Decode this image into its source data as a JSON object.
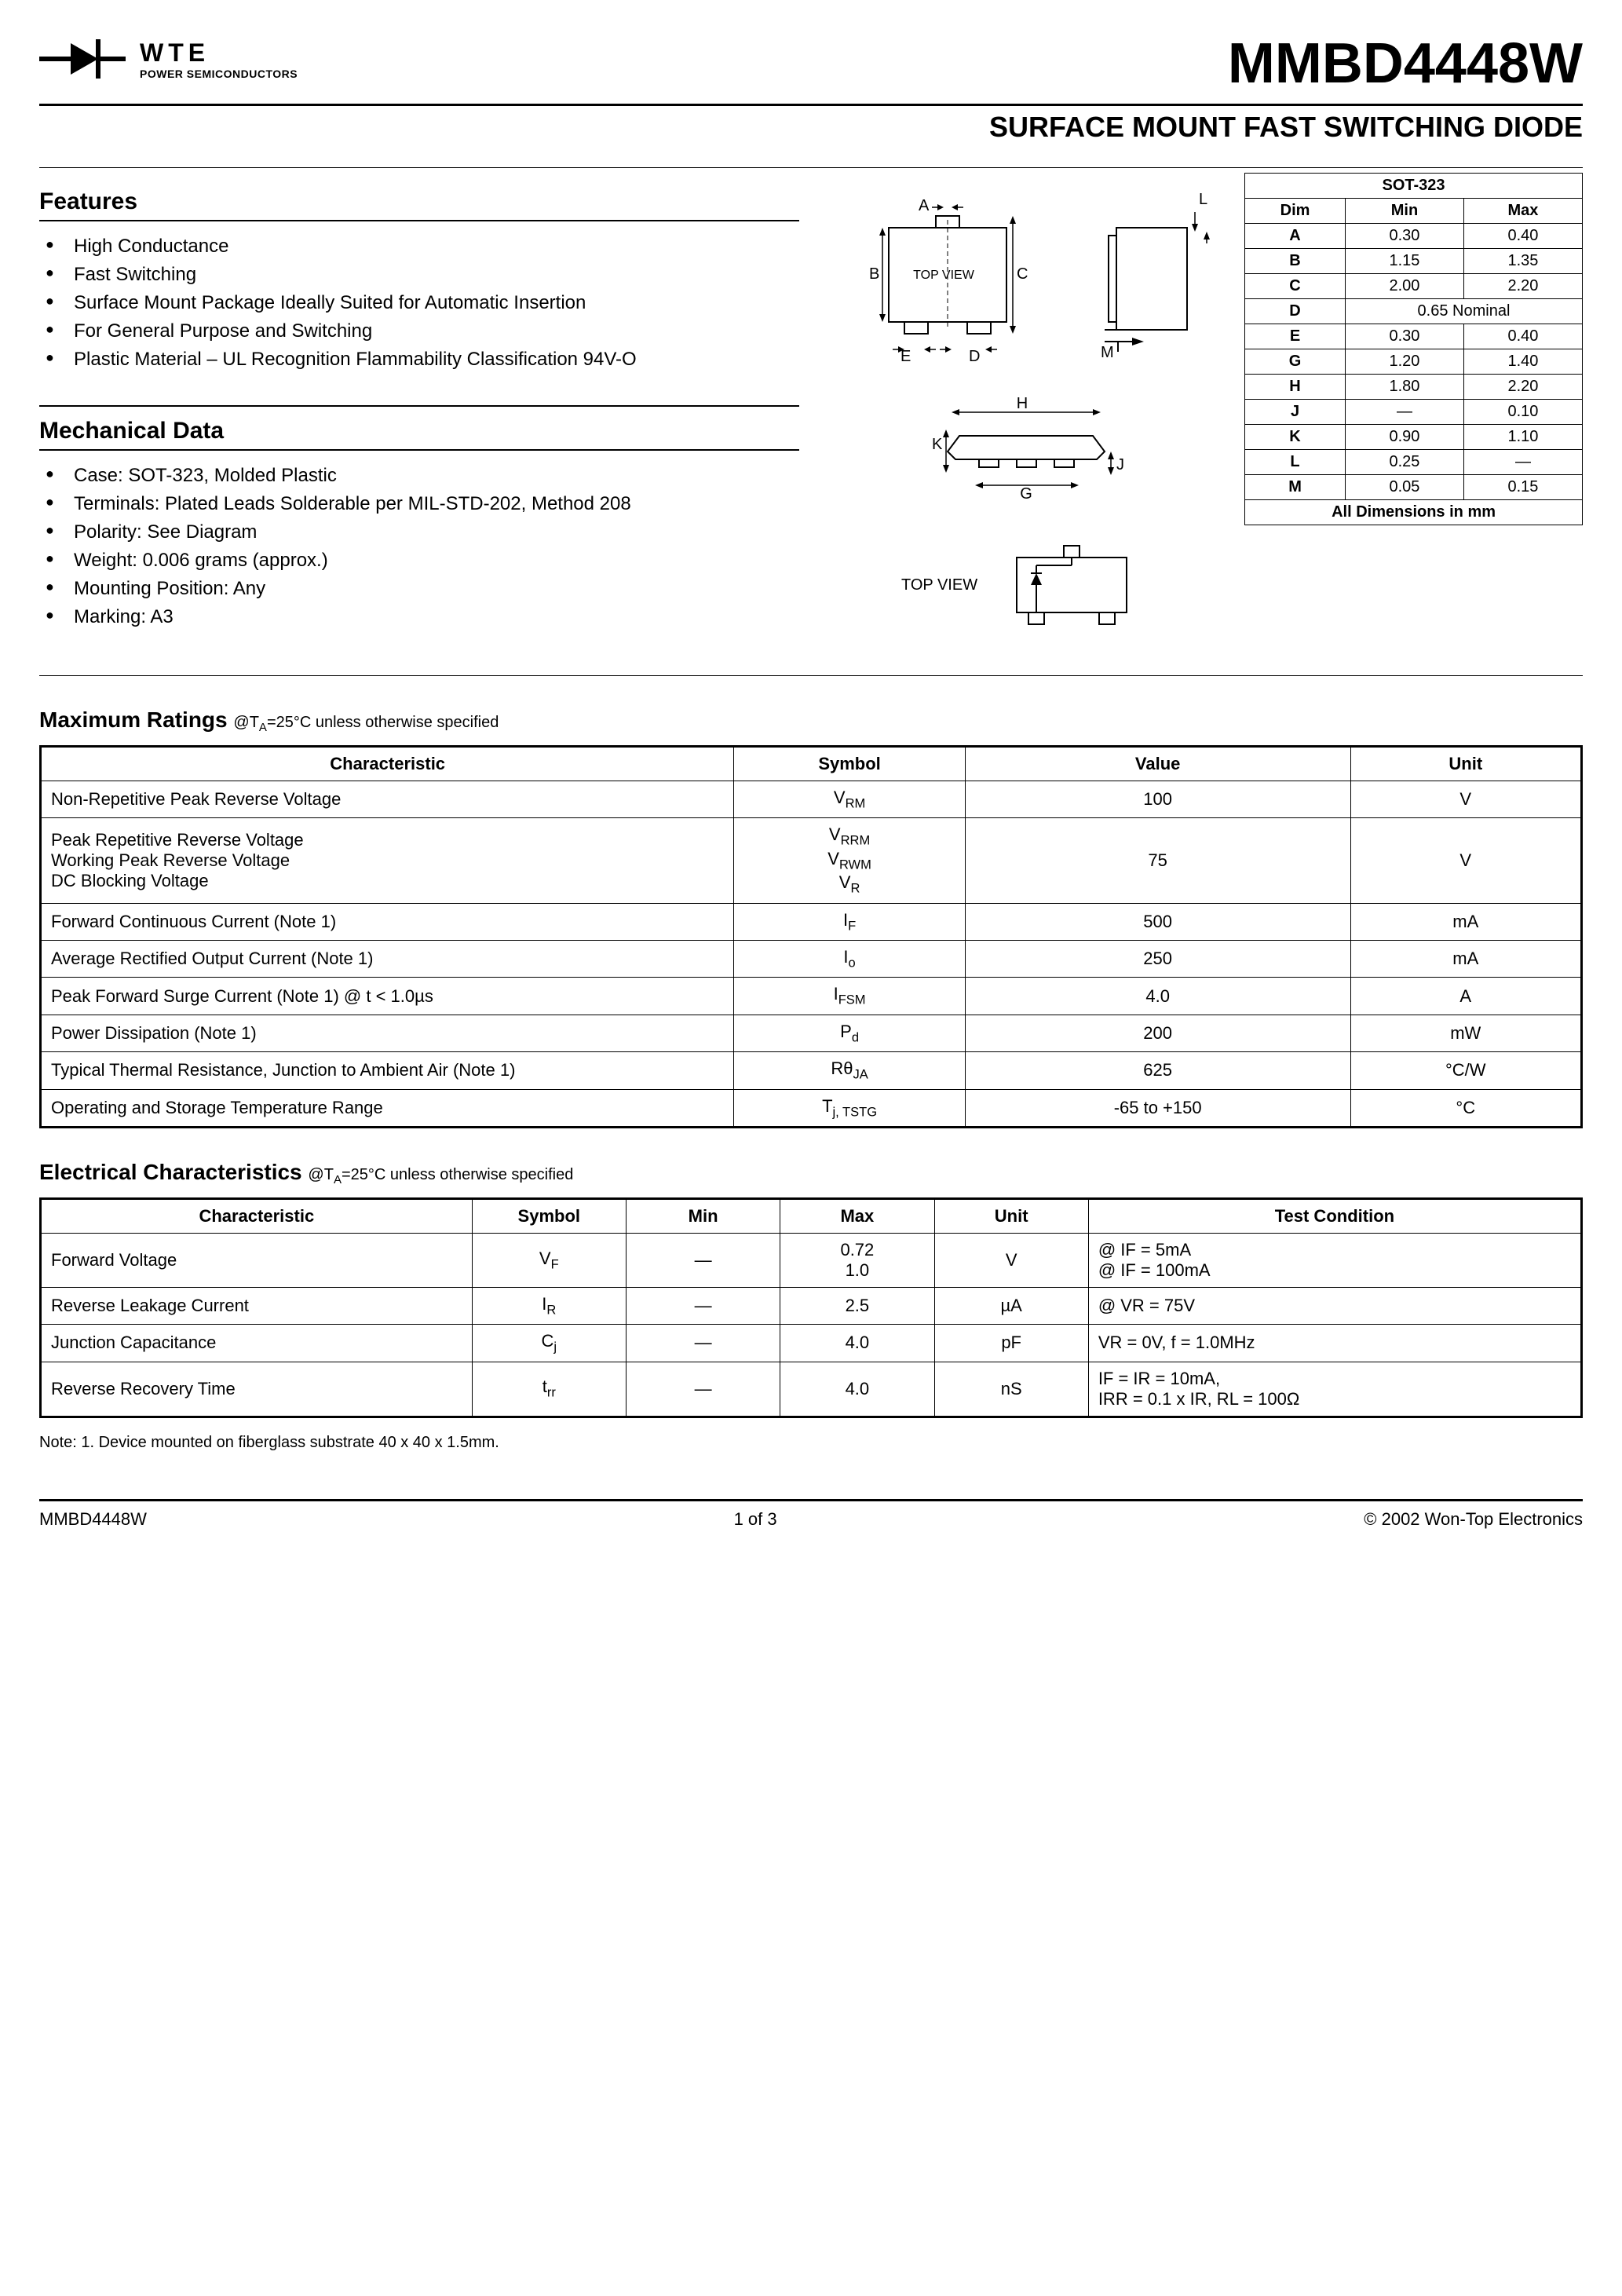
{
  "header": {
    "logo_company": "WTE",
    "logo_tagline": "POWER SEMICONDUCTORS",
    "part_number": "MMBD4448W",
    "subtitle": "SURFACE MOUNT FAST SWITCHING DIODE"
  },
  "features": {
    "title": "Features",
    "items": [
      "High Conductance",
      "Fast Switching",
      "Surface Mount Package Ideally Suited for Automatic Insertion",
      "For General Purpose and Switching",
      "Plastic Material – UL Recognition Flammability Classification 94V-O"
    ]
  },
  "mechanical": {
    "title": "Mechanical Data",
    "items": [
      "Case: SOT-323, Molded Plastic",
      "Terminals: Plated Leads Solderable per MIL-STD-202, Method 208",
      "Polarity: See Diagram",
      "Weight: 0.006 grams (approx.)",
      "Mounting Position: Any",
      "Marking: A3"
    ]
  },
  "diagram_labels": {
    "top_view": "TOP VIEW",
    "A": "A",
    "B": "B",
    "C": "C",
    "D": "D",
    "E": "E",
    "G": "G",
    "H": "H",
    "J": "J",
    "K": "K",
    "L": "L",
    "M": "M"
  },
  "dimensions_table": {
    "title": "SOT-323",
    "headers": [
      "Dim",
      "Min",
      "Max"
    ],
    "rows": [
      [
        "A",
        "0.30",
        "0.40"
      ],
      [
        "B",
        "1.15",
        "1.35"
      ],
      [
        "C",
        "2.00",
        "2.20"
      ],
      [
        "D",
        "0.65 Nominal",
        ""
      ],
      [
        "E",
        "0.30",
        "0.40"
      ],
      [
        "G",
        "1.20",
        "1.40"
      ],
      [
        "H",
        "1.80",
        "2.20"
      ],
      [
        "J",
        "—",
        "0.10"
      ],
      [
        "K",
        "0.90",
        "1.10"
      ],
      [
        "L",
        "0.25",
        "—"
      ],
      [
        "M",
        "0.05",
        "0.15"
      ]
    ],
    "footer": "All Dimensions in mm"
  },
  "max_ratings": {
    "title": "Maximum Ratings",
    "condition": "@TA=25°C unless otherwise specified",
    "headers": [
      "Characteristic",
      "Symbol",
      "Value",
      "Unit"
    ],
    "rows": [
      {
        "char": "Non-Repetitive Peak Reverse Voltage",
        "sym": "VRM",
        "val": "100",
        "unit": "V"
      },
      {
        "char": "Peak Repetitive Reverse Voltage\nWorking Peak Reverse Voltage\nDC Blocking Voltage",
        "sym": "VRRM\nVRWM\nVR",
        "val": "75",
        "unit": "V"
      },
      {
        "char": "Forward Continuous Current (Note 1)",
        "sym": "IF",
        "val": "500",
        "unit": "mA"
      },
      {
        "char": "Average Rectified Output Current (Note 1)",
        "sym": "Io",
        "val": "250",
        "unit": "mA"
      },
      {
        "char": "Peak Forward Surge Current (Note 1)                    @ t < 1.0µs",
        "sym": "IFSM",
        "val": "4.0",
        "unit": "A"
      },
      {
        "char": "Power Dissipation (Note 1)",
        "sym": "Pd",
        "val": "200",
        "unit": "mW"
      },
      {
        "char": "Typical Thermal Resistance, Junction to Ambient Air (Note 1)",
        "sym": "RθJA",
        "val": "625",
        "unit": "°C/W"
      },
      {
        "char": "Operating and Storage Temperature Range",
        "sym": "Tj, TSTG",
        "val": "-65 to +150",
        "unit": "°C"
      }
    ]
  },
  "electrical": {
    "title": "Electrical Characteristics",
    "condition": "@TA=25°C unless otherwise specified",
    "headers": [
      "Characteristic",
      "Symbol",
      "Min",
      "Max",
      "Unit",
      "Test Condition"
    ],
    "rows": [
      {
        "char": "Forward Voltage",
        "sym": "VF",
        "min": "—",
        "max": "0.72\n1.0",
        "unit": "V",
        "cond": "@ IF = 5mA\n@ IF = 100mA"
      },
      {
        "char": "Reverse Leakage Current",
        "sym": "IR",
        "min": "—",
        "max": "2.5",
        "unit": "µA",
        "cond": "@ VR = 75V"
      },
      {
        "char": "Junction Capacitance",
        "sym": "Cj",
        "min": "—",
        "max": "4.0",
        "unit": "pF",
        "cond": "VR = 0V, f = 1.0MHz"
      },
      {
        "char": "Reverse Recovery Time",
        "sym": "trr",
        "min": "—",
        "max": "4.0",
        "unit": "nS",
        "cond": "IF = IR = 10mA,\nIRR = 0.1 x IR, RL = 100Ω"
      }
    ]
  },
  "note": "Note:  1. Device mounted on fiberglass substrate 40 x 40 x 1.5mm.",
  "footer": {
    "left": "MMBD4448W",
    "center": "1 of 3",
    "right": "© 2002 Won-Top Electronics"
  },
  "style": {
    "text_color": "#000000",
    "bg_color": "#ffffff",
    "rule_color": "#000000",
    "font_family": "Arial, Helvetica, sans-serif",
    "part_number_fontsize": 72,
    "subtitle_fontsize": 36,
    "section_title_fontsize": 30,
    "body_fontsize": 24,
    "table_fontsize": 22,
    "dims_fontsize": 20
  }
}
